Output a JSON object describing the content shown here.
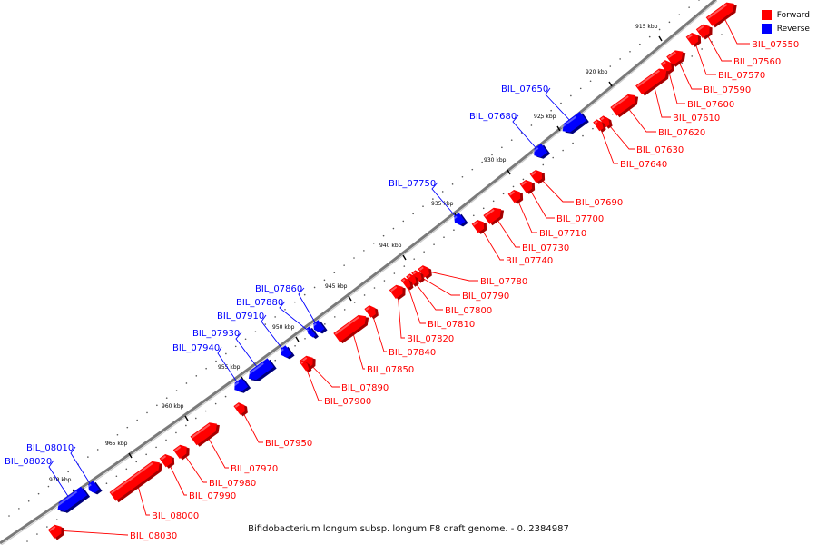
{
  "caption": "Bifidobacterium longum subsp. longum F8 draft genome. - 0..2384987",
  "legend": [
    {
      "label": "Forward",
      "color": "#ff0000"
    },
    {
      "label": "Reverse",
      "color": "#0000ff"
    }
  ],
  "colors": {
    "forward": "#ff0000",
    "reverse": "#0000ff",
    "backbone": "#808080"
  },
  "tick_unit": "kbp",
  "ticks": [
    915,
    920,
    925,
    930,
    935,
    940,
    945,
    950,
    955,
    960,
    965,
    970
  ],
  "genes": [
    {
      "label": "BIL_07550",
      "strand": "forward"
    },
    {
      "label": "BIL_07560",
      "strand": "forward"
    },
    {
      "label": "BIL_07570",
      "strand": "forward"
    },
    {
      "label": "BIL_07590",
      "strand": "forward"
    },
    {
      "label": "BIL_07600",
      "strand": "forward"
    },
    {
      "label": "BIL_07610",
      "strand": "forward"
    },
    {
      "label": "BIL_07620",
      "strand": "forward"
    },
    {
      "label": "BIL_07630",
      "strand": "forward"
    },
    {
      "label": "BIL_07640",
      "strand": "forward"
    },
    {
      "label": "BIL_07650",
      "strand": "reverse"
    },
    {
      "label": "BIL_07680",
      "strand": "reverse"
    },
    {
      "label": "BIL_07690",
      "strand": "forward"
    },
    {
      "label": "BIL_07700",
      "strand": "forward"
    },
    {
      "label": "BIL_07710",
      "strand": "forward"
    },
    {
      "label": "BIL_07730",
      "strand": "forward"
    },
    {
      "label": "BIL_07740",
      "strand": "forward"
    },
    {
      "label": "BIL_07750",
      "strand": "reverse"
    },
    {
      "label": "BIL_07780",
      "strand": "forward"
    },
    {
      "label": "BIL_07790",
      "strand": "forward"
    },
    {
      "label": "BIL_07800",
      "strand": "forward"
    },
    {
      "label": "BIL_07810",
      "strand": "forward"
    },
    {
      "label": "BIL_07820",
      "strand": "forward"
    },
    {
      "label": "BIL_07840",
      "strand": "forward"
    },
    {
      "label": "BIL_07850",
      "strand": "forward"
    },
    {
      "label": "BIL_07860",
      "strand": "reverse"
    },
    {
      "label": "BIL_07880",
      "strand": "reverse"
    },
    {
      "label": "BIL_07890",
      "strand": "forward"
    },
    {
      "label": "BIL_07900",
      "strand": "forward"
    },
    {
      "label": "BIL_07910",
      "strand": "reverse"
    },
    {
      "label": "BIL_07930",
      "strand": "reverse"
    },
    {
      "label": "BIL_07940",
      "strand": "reverse"
    },
    {
      "label": "BIL_07950",
      "strand": "forward"
    },
    {
      "label": "BIL_07970",
      "strand": "forward"
    },
    {
      "label": "BIL_07980",
      "strand": "forward"
    },
    {
      "label": "BIL_07990",
      "strand": "forward"
    },
    {
      "label": "BIL_08000",
      "strand": "forward"
    },
    {
      "label": "BIL_08010",
      "strand": "reverse"
    },
    {
      "label": "BIL_08020",
      "strand": "reverse"
    },
    {
      "label": "BIL_08030",
      "strand": "forward"
    }
  ]
}
